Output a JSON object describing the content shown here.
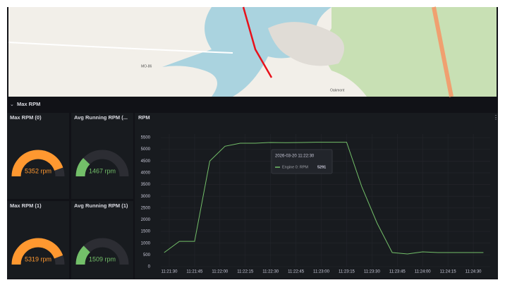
{
  "map": {
    "labels": [
      "MO-86",
      "Oakmont"
    ]
  },
  "section_title": "Max RPM",
  "gauges": [
    {
      "title": "Max RPM (0)",
      "value": 5352,
      "value_label": "5352 rpm",
      "color": "#ff9830",
      "range": [
        0,
        6000
      ]
    },
    {
      "title": "Avg Running RPM (...",
      "value": 1467,
      "value_label": "1467 rpm",
      "color": "#73bf69",
      "range": [
        0,
        6000
      ]
    },
    {
      "title": "Max RPM (1)",
      "value": 5319,
      "value_label": "5319 rpm",
      "color": "#ff9830",
      "range": [
        0,
        6000
      ]
    },
    {
      "title": "Avg Running RPM (1)",
      "value": 1509,
      "value_label": "1509 rpm",
      "color": "#73bf69",
      "range": [
        0,
        6000
      ]
    }
  ],
  "chart_data": {
    "type": "line",
    "title": "RPM",
    "x": [
      "11:21:27",
      "11:21:36",
      "11:21:45",
      "11:21:54",
      "11:22:03",
      "11:22:12",
      "11:22:21",
      "11:22:30",
      "11:22:39",
      "11:22:48",
      "11:22:57",
      "11:23:06",
      "11:23:15",
      "11:23:24",
      "11:23:33",
      "11:23:42",
      "11:23:51",
      "11:24:00",
      "11:24:09",
      "11:24:18",
      "11:24:27",
      "11:24:36"
    ],
    "xlim": [
      "11:21:25",
      "11:24:40"
    ],
    "xticks": [
      "11:21:30",
      "11:21:45",
      "11:22:00",
      "11:22:15",
      "11:22:30",
      "11:22:45",
      "11:23:00",
      "11:23:15",
      "11:23:30",
      "11:23:45",
      "11:24:00",
      "11:24:15",
      "11:24:30"
    ],
    "series": [
      {
        "name": "Engine 0: RPM",
        "color": "#73bf69",
        "values": [
          600,
          1080,
          1080,
          4500,
          5130,
          5260,
          5260,
          5291,
          5280,
          5290,
          5300,
          5300,
          5300,
          3400,
          1860,
          600,
          540,
          630,
          600,
          600,
          600,
          600
        ]
      }
    ],
    "ylim": [
      0,
      5650
    ],
    "yticks": [
      0,
      500,
      1000,
      1500,
      2000,
      2500,
      3000,
      3500,
      4000,
      4500,
      5000,
      5500
    ],
    "grid": true,
    "tooltip": {
      "title": "2026-03-20 11:22:30"
    }
  }
}
